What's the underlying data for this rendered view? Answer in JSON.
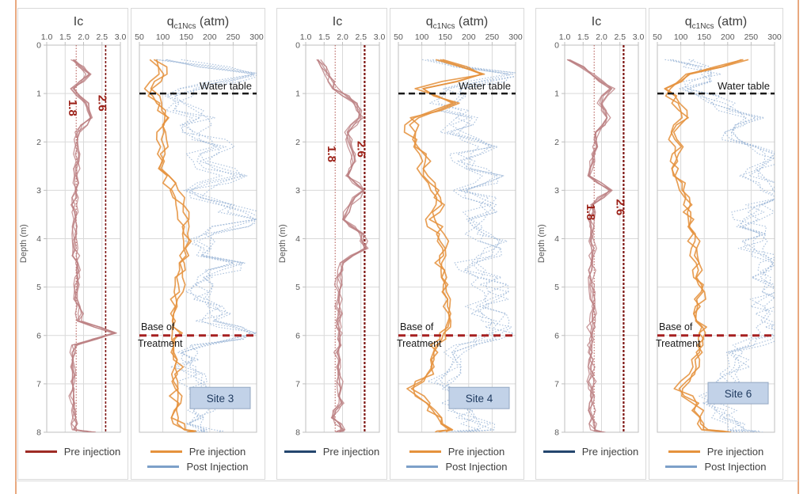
{
  "figure": {
    "description": "CPT soundings pre and post injection for three sites",
    "accent_border_color": "#e9a97f",
    "grid_color": "#d9d9d9",
    "axis_line_color": "#bfbfbf",
    "tick_text_color": "#595959",
    "annotation_text_color": "#1a1a1a"
  },
  "panels": [
    {
      "kind": "ic",
      "title": "Ic",
      "ylabel": "Depth (m)",
      "legend": [
        {
          "label": "Pre injection",
          "color": "#9e2b25"
        }
      ]
    },
    {
      "kind": "qc",
      "title_main": "q",
      "title_sub": "c1Ncs",
      "title_suffix": " (atm)",
      "site_label": "Site 3",
      "legend": [
        {
          "label": "Pre injection",
          "color": "#e5923d"
        },
        {
          "label": "Post Injection",
          "color": "#7da0c9"
        }
      ]
    },
    {
      "kind": "ic",
      "title": "Ic",
      "ylabel": "Depth (m)",
      "legend": [
        {
          "label": "Pre injection",
          "color": "#24466e"
        }
      ]
    },
    {
      "kind": "qc",
      "title_main": "q",
      "title_sub": "c1Ncs",
      "title_suffix": " (atm)",
      "site_label": "Site 4",
      "legend": [
        {
          "label": "Pre injection",
          "color": "#e5923d"
        },
        {
          "label": "Post Injection",
          "color": "#7da0c9"
        }
      ]
    },
    {
      "kind": "ic",
      "title": "Ic",
      "ylabel": "Depth (m)",
      "legend": [
        {
          "label": "Pre injection",
          "color": "#24466e"
        }
      ]
    },
    {
      "kind": "qc",
      "title_main": "q",
      "title_sub": "c1Ncs",
      "title_suffix": " (atm)",
      "site_label": "Site 6",
      "legend": [
        {
          "label": "Pre injection",
          "color": "#e5923d"
        },
        {
          "label": "Post Injection",
          "color": "#7da0c9"
        }
      ]
    }
  ],
  "chart_data": [
    {
      "type": "line",
      "title": "Ic",
      "xlabel": "Ic",
      "ylabel": "Depth (m)",
      "xlim": [
        1.0,
        3.0
      ],
      "ylim": [
        0,
        8
      ],
      "xticks": [
        "1.0",
        "1.5",
        "2.0",
        "2.5",
        "3.0"
      ],
      "xtick_values": [
        1.0,
        1.5,
        2.0,
        2.5,
        3.0
      ],
      "yticks": [
        0,
        1,
        2,
        3,
        4,
        5,
        6,
        7,
        8
      ],
      "depths": [
        0.3,
        0.6,
        0.9,
        1.2,
        1.5,
        1.8,
        2.1,
        2.4,
        2.7,
        3.0,
        3.3,
        3.6,
        3.9,
        4.2,
        4.5,
        4.8,
        5.1,
        5.4,
        5.7,
        5.95,
        6.2,
        6.5,
        6.8,
        7.1,
        7.4,
        7.7,
        7.95,
        8.0
      ],
      "ref_lines_x": [
        {
          "value": 1.8,
          "label": "1.8",
          "label_depth": 1.3,
          "color": "#b0524d",
          "width": 1,
          "dash": "1.5 2"
        },
        {
          "value": 2.6,
          "label": "2.6",
          "label_depth": 1.2,
          "color": "#7e1512",
          "width": 1.6,
          "dash": "3 2"
        }
      ],
      "series": [
        {
          "key": "pre-injection",
          "name": "Pre injection",
          "color": "#bc7f82",
          "width": 1.3,
          "opacity": 0.8,
          "dash": "",
          "replicates": 5,
          "jitter": 0.07,
          "values": [
            1.75,
            2.15,
            1.7,
            2.1,
            2.2,
            1.85,
            1.8,
            1.85,
            1.78,
            1.8,
            1.75,
            1.82,
            1.78,
            1.8,
            1.82,
            1.85,
            1.8,
            1.88,
            1.92,
            2.85,
            1.78,
            1.72,
            1.75,
            1.7,
            1.73,
            1.76,
            1.78,
            2.3
          ]
        }
      ]
    },
    {
      "type": "line",
      "title": "qc1Ncs (atm)",
      "xlabel": "qc1Ncs (atm)",
      "ylabel": "Depth (m)",
      "xlim": [
        50,
        300
      ],
      "ylim": [
        0,
        8
      ],
      "xticks": [
        "50",
        "100",
        "150",
        "200",
        "250",
        "300"
      ],
      "xtick_values": [
        50,
        100,
        150,
        200,
        250,
        300
      ],
      "yticks": [
        0,
        1,
        2,
        3,
        4,
        5,
        6,
        7,
        8
      ],
      "depths": [
        0.3,
        0.6,
        0.9,
        1.2,
        1.5,
        1.8,
        2.1,
        2.4,
        2.7,
        3.0,
        3.3,
        3.6,
        3.9,
        4.2,
        4.5,
        4.8,
        5.1,
        5.4,
        5.7,
        5.95,
        6.2,
        6.5,
        6.8,
        7.1,
        7.4,
        7.7,
        7.95,
        8.0
      ],
      "ref_lines_y": [
        {
          "value": 1.0,
          "label": "Water table",
          "style": "water",
          "color": "#1a1a1a",
          "width": 2.4,
          "dash": "8 5"
        },
        {
          "value": 6.0,
          "label": "Base of Treatment",
          "label_lines": [
            "Base of",
            "Treatment"
          ],
          "style": "base",
          "color": "#a62021",
          "width": 3,
          "dash": "9 6"
        }
      ],
      "site_label": {
        "text": "Site 3",
        "depth": 7.3,
        "fill": "#c2d2e8",
        "stroke": "#93a7c2",
        "text_color": "#1f3a5f"
      },
      "series": [
        {
          "key": "post-injection",
          "name": "Post Injection",
          "color": "#92afd3",
          "width": 1.15,
          "opacity": 0.75,
          "dash": "1.6 2",
          "replicates": 5,
          "jitter": 28,
          "values": [
            110,
            290,
            150,
            120,
            185,
            150,
            225,
            165,
            255,
            165,
            235,
            280,
            205,
            175,
            245,
            195,
            165,
            215,
            185,
            295,
            175,
            155,
            165,
            175,
            185,
            165,
            175,
            205
          ]
        },
        {
          "key": "pre-injection",
          "name": "Pre injection",
          "color": "#e5923d",
          "width": 1.7,
          "opacity": 0.88,
          "dash": "",
          "replicates": 3,
          "jitter": 9,
          "values": [
            85,
            100,
            70,
            90,
            110,
            95,
            100,
            95,
            110,
            125,
            135,
            145,
            150,
            145,
            140,
            135,
            132,
            128,
            125,
            132,
            122,
            126,
            130,
            134,
            130,
            126,
            150,
            160
          ]
        }
      ]
    },
    {
      "type": "line",
      "title": "Ic",
      "xlabel": "Ic",
      "ylabel": "Depth (m)",
      "xlim": [
        1.0,
        3.0
      ],
      "ylim": [
        0,
        8
      ],
      "xticks": [
        "1.0",
        "1.5",
        "2.0",
        "2.5",
        "3.0"
      ],
      "xtick_values": [
        1.0,
        1.5,
        2.0,
        2.5,
        3.0
      ],
      "yticks": [
        0,
        1,
        2,
        3,
        4,
        5,
        6,
        7,
        8
      ],
      "depths": [
        0.3,
        0.6,
        0.9,
        1.2,
        1.5,
        1.8,
        2.1,
        2.4,
        2.7,
        3.0,
        3.3,
        3.6,
        3.9,
        4.2,
        4.5,
        4.8,
        5.1,
        5.4,
        5.7,
        5.95,
        6.2,
        6.5,
        6.8,
        7.1,
        7.4,
        7.7,
        7.95,
        8.0
      ],
      "ref_lines_x": [
        {
          "value": 1.8,
          "label": "1.8",
          "label_depth": 2.25,
          "color": "#b0524d",
          "width": 1,
          "dash": "1.5 2"
        },
        {
          "value": 2.6,
          "label": "2.6",
          "label_depth": 2.15,
          "color": "#7e1512",
          "width": 2.2,
          "dash": "3 2"
        }
      ],
      "series": [
        {
          "key": "pre-injection",
          "name": "Pre injection",
          "color": "#bc7f82",
          "width": 1.3,
          "opacity": 0.8,
          "dash": "",
          "replicates": 5,
          "jitter": 0.07,
          "values": [
            1.35,
            1.6,
            1.8,
            2.35,
            2.5,
            2.1,
            2.2,
            2.3,
            2.15,
            2.6,
            2.2,
            2.05,
            2.5,
            2.65,
            1.95,
            1.9,
            1.92,
            1.88,
            1.9,
            1.95,
            1.9,
            1.88,
            1.92,
            1.9,
            1.95,
            1.7,
            2.05,
            1.85
          ]
        }
      ]
    },
    {
      "type": "line",
      "title": "qc1Ncs (atm)",
      "xlabel": "qc1Ncs (atm)",
      "ylabel": "Depth (m)",
      "xlim": [
        50,
        300
      ],
      "ylim": [
        0,
        8
      ],
      "xticks": [
        "50",
        "100",
        "150",
        "200",
        "250",
        "300"
      ],
      "xtick_values": [
        50,
        100,
        150,
        200,
        250,
        300
      ],
      "yticks": [
        0,
        1,
        2,
        3,
        4,
        5,
        6,
        7,
        8
      ],
      "depths": [
        0.3,
        0.6,
        0.9,
        1.2,
        1.5,
        1.8,
        2.1,
        2.4,
        2.7,
        3.0,
        3.3,
        3.6,
        3.9,
        4.2,
        4.5,
        4.8,
        5.1,
        5.4,
        5.7,
        5.95,
        6.2,
        6.5,
        6.8,
        7.1,
        7.4,
        7.7,
        7.95,
        8.0
      ],
      "ref_lines_y": [
        {
          "value": 1.0,
          "label": "Water table",
          "style": "water",
          "color": "#1a1a1a",
          "width": 2.4,
          "dash": "8 5"
        },
        {
          "value": 6.0,
          "label": "Base of Treatment",
          "label_lines": [
            "Base of",
            "Treatment"
          ],
          "style": "base",
          "color": "#a62021",
          "width": 3,
          "dash": "9 6"
        }
      ],
      "site_label": {
        "text": "Site 4",
        "depth": 7.3,
        "fill": "#c2d2e8",
        "stroke": "#93a7c2",
        "text_color": "#1f3a5f"
      },
      "series": [
        {
          "key": "post-injection",
          "name": "Post Injection",
          "color": "#92afd3",
          "width": 1.15,
          "opacity": 0.75,
          "dash": "1.6 2",
          "replicates": 5,
          "jitter": 28,
          "values": [
            120,
            300,
            170,
            140,
            200,
            160,
            240,
            180,
            260,
            190,
            250,
            210,
            230,
            260,
            200,
            240,
            260,
            220,
            260,
            270,
            200,
            180,
            160,
            150,
            170,
            200,
            230,
            180
          ]
        },
        {
          "key": "pre-injection",
          "name": "Pre injection",
          "color": "#e5923d",
          "width": 1.7,
          "opacity": 0.88,
          "dash": "",
          "replicates": 3,
          "jitter": 9,
          "values": [
            140,
            230,
            90,
            170,
            80,
            75,
            90,
            110,
            100,
            130,
            140,
            120,
            135,
            150,
            140,
            145,
            150,
            155,
            160,
            150,
            130,
            120,
            115,
            75,
            110,
            130,
            160,
            140
          ]
        }
      ]
    },
    {
      "type": "line",
      "title": "Ic",
      "xlabel": "Ic",
      "ylabel": "Depth (m)",
      "xlim": [
        1.0,
        3.0
      ],
      "ylim": [
        0,
        8
      ],
      "xticks": [
        "1.0",
        "1.5",
        "2.0",
        "2.5",
        "3.0"
      ],
      "xtick_values": [
        1.0,
        1.5,
        2.0,
        2.5,
        3.0
      ],
      "yticks": [
        0,
        1,
        2,
        3,
        4,
        5,
        6,
        7,
        8
      ],
      "depths": [
        0.3,
        0.6,
        0.9,
        1.2,
        1.5,
        1.8,
        2.1,
        2.4,
        2.7,
        3.0,
        3.3,
        3.6,
        3.9,
        4.2,
        4.5,
        4.8,
        5.1,
        5.4,
        5.7,
        5.95,
        6.2,
        6.5,
        6.8,
        7.1,
        7.4,
        7.7,
        7.95,
        8.0
      ],
      "ref_lines_x": [
        {
          "value": 1.8,
          "label": "1.8",
          "label_depth": 3.45,
          "color": "#b0524d",
          "width": 1,
          "dash": "1.5 2"
        },
        {
          "value": 2.6,
          "label": "2.6",
          "label_depth": 3.35,
          "color": "#7e1512",
          "width": 2.2,
          "dash": "3 2"
        }
      ],
      "series": [
        {
          "key": "pre-injection",
          "name": "Pre injection",
          "color": "#bc7f82",
          "width": 1.3,
          "opacity": 0.8,
          "dash": "",
          "replicates": 5,
          "jitter": 0.07,
          "values": [
            1.15,
            1.75,
            2.3,
            1.95,
            2.2,
            1.9,
            1.85,
            1.78,
            1.72,
            2.25,
            1.75,
            1.72,
            1.75,
            1.78,
            1.75,
            1.72,
            1.75,
            1.78,
            1.75,
            1.72,
            1.7,
            1.73,
            1.75,
            1.72,
            1.74,
            1.76,
            1.78,
            2.05
          ]
        }
      ]
    },
    {
      "type": "line",
      "title": "qc1Ncs (atm)",
      "xlabel": "qc1Ncs (atm)",
      "ylabel": "Depth (m)",
      "xlim": [
        50,
        300
      ],
      "ylim": [
        0,
        8
      ],
      "xticks": [
        "50",
        "100",
        "150",
        "200",
        "250",
        "300"
      ],
      "xtick_values": [
        50,
        100,
        150,
        200,
        250,
        300
      ],
      "yticks": [
        0,
        1,
        2,
        3,
        4,
        5,
        6,
        7,
        8
      ],
      "depths": [
        0.3,
        0.6,
        0.9,
        1.2,
        1.5,
        1.8,
        2.1,
        2.4,
        2.7,
        3.0,
        3.3,
        3.6,
        3.9,
        4.2,
        4.5,
        4.8,
        5.1,
        5.4,
        5.7,
        5.95,
        6.2,
        6.5,
        6.8,
        7.1,
        7.4,
        7.7,
        7.95,
        8.0
      ],
      "ref_lines_y": [
        {
          "value": 1.0,
          "label": "Water table",
          "style": "water",
          "color": "#1a1a1a",
          "width": 2.4,
          "dash": "8 5"
        },
        {
          "value": 6.0,
          "label": "Base of Treatment",
          "label_lines": [
            "Base of",
            "Treatment"
          ],
          "style": "base",
          "color": "#a62021",
          "width": 3,
          "dash": "9 6"
        }
      ],
      "site_label": {
        "text": "Site 6",
        "depth": 7.2,
        "fill": "#c2d2e8",
        "stroke": "#93a7c2",
        "text_color": "#1f3a5f"
      },
      "series": [
        {
          "key": "post-injection",
          "name": "Post Injection",
          "color": "#92afd3",
          "width": 1.15,
          "opacity": 0.75,
          "dash": "1.6 2",
          "replicates": 5,
          "jitter": 28,
          "values": [
            90,
            150,
            115,
            180,
            240,
            200,
            260,
            290,
            250,
            295,
            260,
            240,
            270,
            250,
            280,
            260,
            290,
            270,
            295,
            290,
            240,
            220,
            200,
            180,
            160,
            190,
            220,
            250
          ]
        },
        {
          "key": "pre-injection",
          "name": "Pre injection",
          "color": "#e5923d",
          "width": 1.7,
          "opacity": 0.88,
          "dash": "",
          "replicates": 3,
          "jitter": 9,
          "values": [
            235,
            120,
            70,
            90,
            110,
            80,
            95,
            85,
            90,
            105,
            115,
            120,
            130,
            125,
            135,
            130,
            140,
            135,
            140,
            145,
            140,
            130,
            125,
            95,
            130,
            140,
            150,
            200
          ]
        }
      ]
    }
  ]
}
